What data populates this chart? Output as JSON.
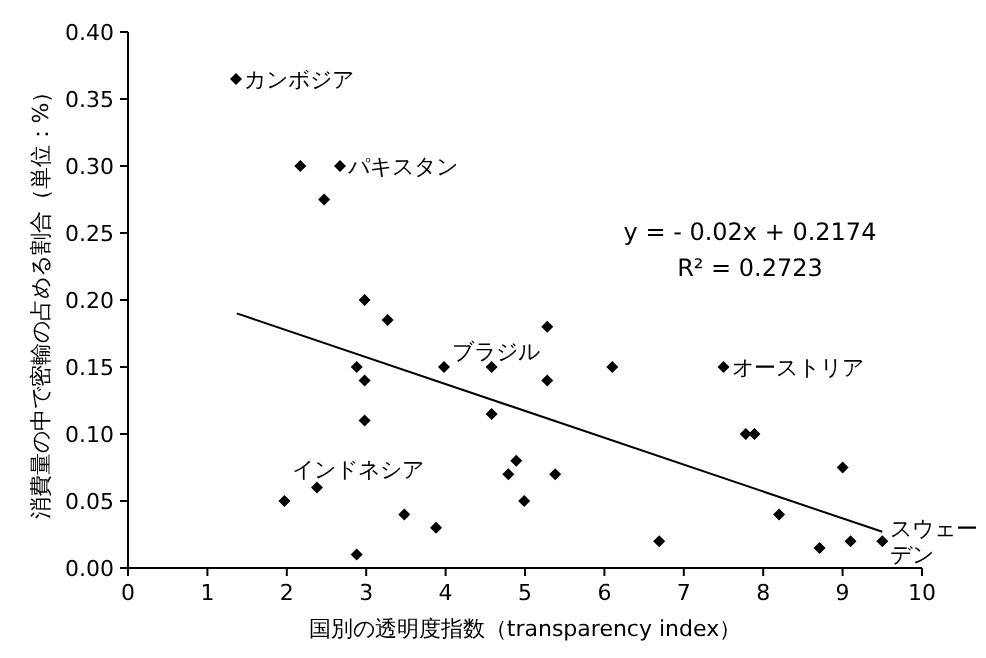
{
  "chart_data": {
    "type": "scatter",
    "xlabel": "国別の透明度指数（transparency index）",
    "ylabel": "消費量の中で密輸の占める割合（単位：%）",
    "xlim": [
      0,
      10
    ],
    "ylim": [
      0,
      0.4
    ],
    "xticks": [
      0,
      1,
      2,
      3,
      4,
      5,
      6,
      7,
      8,
      9,
      10
    ],
    "yticks": [
      {
        "value": 0,
        "label": "0.00"
      },
      {
        "value": 0.05,
        "label": "0.05"
      },
      {
        "value": 0.1,
        "label": "0.10"
      },
      {
        "value": 0.15,
        "label": "0.15"
      },
      {
        "value": 0.2,
        "label": "0.20"
      },
      {
        "value": 0.25,
        "label": "0.25"
      },
      {
        "value": 0.3,
        "label": "0.30"
      },
      {
        "value": 0.35,
        "label": "0.35"
      },
      {
        "value": 0.4,
        "label": "0.40"
      }
    ],
    "marker": "diamond",
    "series": [
      {
        "color": "#000000",
        "x": [
          1.36,
          2.17,
          2.67,
          2.47,
          2.98,
          3.27,
          2.88,
          2.98,
          2.98,
          3.98,
          4.58,
          4.58,
          5.28,
          5.28,
          2.38,
          1.97,
          3.48,
          3.88,
          2.88,
          4.89,
          4.79,
          4.99,
          5.38,
          6.1,
          7.5,
          7.78,
          7.89,
          6.69,
          8.2,
          9.0,
          8.71,
          9.1,
          9.5
        ],
        "values": [
          0.365,
          0.3,
          0.3,
          0.275,
          0.2,
          0.185,
          0.15,
          0.14,
          0.11,
          0.15,
          0.15,
          0.115,
          0.18,
          0.14,
          0.06,
          0.05,
          0.04,
          0.03,
          0.01,
          0.08,
          0.07,
          0.05,
          0.07,
          0.15,
          0.15,
          0.1,
          0.1,
          0.02,
          0.04,
          0.075,
          0.015,
          0.02,
          0.02
        ]
      },
      {
        "type": "line",
        "marker": "none",
        "color": "#000000",
        "x": [
          1.37,
          9.5
        ],
        "values": [
          0.19,
          0.027
        ]
      }
    ],
    "annotations": [
      {
        "text": "カンボジア",
        "x": 1.36,
        "y": 0.365
      },
      {
        "text": "パキスタン",
        "x": 2.67,
        "y": 0.3
      },
      {
        "text": "ブラジル",
        "x": 3.98,
        "y": 0.15
      },
      {
        "text": "インドネシア",
        "x": 1.97,
        "y": 0.05
      },
      {
        "text": "オーストリア",
        "x": 7.5,
        "y": 0.15
      },
      {
        "text": "スウェーデン",
        "x": 9.5,
        "y": 0.02
      },
      "y = - 0.02x + 0.2174",
      "R² = 0.2723"
    ]
  }
}
